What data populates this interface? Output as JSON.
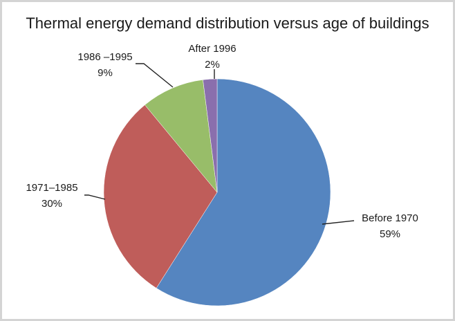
{
  "chart_data": {
    "type": "pie",
    "title": "Thermal energy demand distribution versus age of buildings",
    "slices": [
      {
        "label": "Before 1970",
        "value": 59,
        "display": "59%",
        "color": "#5585c0"
      },
      {
        "label": "1971–1985",
        "value": 30,
        "display": "30%",
        "color": "#bf5d5a"
      },
      {
        "label": "1986 –1995",
        "value": 9,
        "display": "9%",
        "color": "#98bd69"
      },
      {
        "label": "After 1996",
        "value": 2,
        "display": "2%",
        "color": "#8a6fad"
      }
    ]
  }
}
